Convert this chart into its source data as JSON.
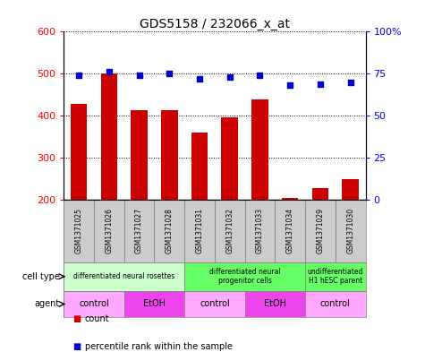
{
  "title": "GDS5158 / 232066_x_at",
  "samples": [
    "GSM1371025",
    "GSM1371026",
    "GSM1371027",
    "GSM1371028",
    "GSM1371031",
    "GSM1371032",
    "GSM1371033",
    "GSM1371034",
    "GSM1371029",
    "GSM1371030"
  ],
  "counts": [
    428,
    500,
    413,
    413,
    360,
    395,
    438,
    205,
    228,
    248
  ],
  "percentiles": [
    74,
    76,
    74,
    75,
    72,
    73,
    74,
    68,
    69,
    70
  ],
  "ylim_left": [
    200,
    600
  ],
  "ylim_right": [
    0,
    100
  ],
  "yticks_left": [
    200,
    300,
    400,
    500,
    600
  ],
  "yticks_right": [
    0,
    25,
    50,
    75,
    100
  ],
  "bar_color": "#cc0000",
  "dot_color": "#0000cc",
  "bar_baseline": 200,
  "cell_type_groups": [
    {
      "label": "differentiated neural rosettes",
      "start": 0,
      "end": 4,
      "color": "#ccffcc"
    },
    {
      "label": "differentiated neural\nprogenitor cells",
      "start": 4,
      "end": 8,
      "color": "#66ff66"
    },
    {
      "label": "undifferentiated\nH1 hESC parent",
      "start": 8,
      "end": 10,
      "color": "#66ff66"
    }
  ],
  "agent_groups": [
    {
      "label": "control",
      "start": 0,
      "end": 2,
      "color": "#ffaaff"
    },
    {
      "label": "EtOH",
      "start": 2,
      "end": 4,
      "color": "#ee44ee"
    },
    {
      "label": "control",
      "start": 4,
      "end": 6,
      "color": "#ffaaff"
    },
    {
      "label": "EtOH",
      "start": 6,
      "end": 8,
      "color": "#ee44ee"
    },
    {
      "label": "control",
      "start": 8,
      "end": 10,
      "color": "#ffaaff"
    }
  ],
  "row_label_cell_type": "cell type",
  "row_label_agent": "agent",
  "legend_count_label": "count",
  "legend_percentile_label": "percentile rank within the sample",
  "header_bg": "#cccccc",
  "right_ytick_labels": [
    "0",
    "25",
    "50",
    "75",
    "100%"
  ]
}
